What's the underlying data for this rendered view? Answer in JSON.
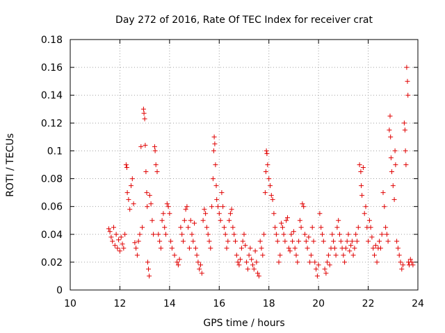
{
  "chart_data": {
    "type": "scatter",
    "title": "Day 272 of 2016, Rate Of TEC Index for receiver crat",
    "xlabel": "GPS time / hours",
    "ylabel": "ROTI / TECUs",
    "xlim": [
      10,
      24
    ],
    "ylim": [
      0,
      0.18
    ],
    "xticks": [
      10,
      12,
      14,
      16,
      18,
      20,
      22,
      24
    ],
    "xtick_labels": [
      "10",
      "12",
      "14",
      "16",
      "18",
      "20",
      "22",
      "24"
    ],
    "yticks": [
      0,
      0.02,
      0.04,
      0.06,
      0.08,
      0.1,
      0.12,
      0.14,
      0.16,
      0.18
    ],
    "ytick_labels": [
      "0",
      "0.02",
      "0.04",
      "0.06",
      "0.08",
      "0.1",
      "0.12",
      "0.14",
      "0.16",
      "0.18"
    ],
    "grid": true,
    "marker": "+",
    "color": "#e00000",
    "series": [
      {
        "name": "ROTI",
        "points": [
          [
            11.55,
            0.044
          ],
          [
            11.6,
            0.042
          ],
          [
            11.65,
            0.038
          ],
          [
            11.7,
            0.035
          ],
          [
            11.75,
            0.045
          ],
          [
            11.8,
            0.032
          ],
          [
            11.85,
            0.04
          ],
          [
            11.9,
            0.03
          ],
          [
            11.95,
            0.036
          ],
          [
            12.0,
            0.028
          ],
          [
            12.05,
            0.038
          ],
          [
            12.1,
            0.033
          ],
          [
            12.15,
            0.03
          ],
          [
            12.2,
            0.04
          ],
          [
            12.25,
            0.09
          ],
          [
            12.28,
            0.088
          ],
          [
            12.3,
            0.07
          ],
          [
            12.35,
            0.065
          ],
          [
            12.4,
            0.058
          ],
          [
            12.45,
            0.075
          ],
          [
            12.5,
            0.08
          ],
          [
            12.55,
            0.062
          ],
          [
            12.6,
            0.034
          ],
          [
            12.65,
            0.03
          ],
          [
            12.7,
            0.025
          ],
          [
            12.75,
            0.035
          ],
          [
            12.8,
            0.04
          ],
          [
            12.85,
            0.103
          ],
          [
            12.9,
            0.045
          ],
          [
            12.95,
            0.13
          ],
          [
            12.97,
            0.127
          ],
          [
            13.0,
            0.123
          ],
          [
            13.02,
            0.104
          ],
          [
            13.05,
            0.085
          ],
          [
            13.08,
            0.07
          ],
          [
            13.1,
            0.06
          ],
          [
            13.12,
            0.02
          ],
          [
            13.15,
            0.015
          ],
          [
            13.18,
            0.01
          ],
          [
            13.2,
            0.068
          ],
          [
            13.25,
            0.062
          ],
          [
            13.3,
            0.05
          ],
          [
            13.35,
            0.04
          ],
          [
            13.4,
            0.103
          ],
          [
            13.42,
            0.1
          ],
          [
            13.45,
            0.09
          ],
          [
            13.5,
            0.085
          ],
          [
            13.55,
            0.04
          ],
          [
            13.6,
            0.035
          ],
          [
            13.65,
            0.03
          ],
          [
            13.7,
            0.05
          ],
          [
            13.75,
            0.055
          ],
          [
            13.8,
            0.045
          ],
          [
            13.85,
            0.04
          ],
          [
            13.9,
            0.062
          ],
          [
            13.95,
            0.06
          ],
          [
            14.0,
            0.055
          ],
          [
            14.05,
            0.035
          ],
          [
            14.1,
            0.03
          ],
          [
            14.2,
            0.025
          ],
          [
            14.3,
            0.02
          ],
          [
            14.35,
            0.018
          ],
          [
            14.4,
            0.022
          ],
          [
            14.45,
            0.045
          ],
          [
            14.5,
            0.04
          ],
          [
            14.55,
            0.035
          ],
          [
            14.6,
            0.05
          ],
          [
            14.65,
            0.058
          ],
          [
            14.7,
            0.06
          ],
          [
            14.75,
            0.045
          ],
          [
            14.8,
            0.03
          ],
          [
            14.85,
            0.05
          ],
          [
            14.9,
            0.04
          ],
          [
            14.95,
            0.035
          ],
          [
            15.0,
            0.048
          ],
          [
            15.05,
            0.03
          ],
          [
            15.1,
            0.025
          ],
          [
            15.15,
            0.02
          ],
          [
            15.2,
            0.015
          ],
          [
            15.25,
            0.018
          ],
          [
            15.3,
            0.012
          ],
          [
            15.35,
            0.05
          ],
          [
            15.4,
            0.058
          ],
          [
            15.45,
            0.055
          ],
          [
            15.5,
            0.045
          ],
          [
            15.55,
            0.04
          ],
          [
            15.6,
            0.035
          ],
          [
            15.65,
            0.03
          ],
          [
            15.7,
            0.06
          ],
          [
            15.75,
            0.08
          ],
          [
            15.78,
            0.1
          ],
          [
            15.8,
            0.11
          ],
          [
            15.82,
            0.105
          ],
          [
            15.85,
            0.09
          ],
          [
            15.88,
            0.075
          ],
          [
            15.9,
            0.065
          ],
          [
            15.95,
            0.06
          ],
          [
            16.0,
            0.055
          ],
          [
            16.05,
            0.05
          ],
          [
            16.1,
            0.07
          ],
          [
            16.15,
            0.06
          ],
          [
            16.2,
            0.045
          ],
          [
            16.25,
            0.04
          ],
          [
            16.3,
            0.03
          ],
          [
            16.35,
            0.035
          ],
          [
            16.4,
            0.05
          ],
          [
            16.45,
            0.055
          ],
          [
            16.5,
            0.058
          ],
          [
            16.55,
            0.045
          ],
          [
            16.6,
            0.04
          ],
          [
            16.65,
            0.035
          ],
          [
            16.7,
            0.025
          ],
          [
            16.75,
            0.02
          ],
          [
            16.8,
            0.018
          ],
          [
            16.85,
            0.022
          ],
          [
            16.9,
            0.03
          ],
          [
            16.95,
            0.035
          ],
          [
            17.0,
            0.04
          ],
          [
            17.05,
            0.032
          ],
          [
            17.1,
            0.02
          ],
          [
            17.15,
            0.015
          ],
          [
            17.2,
            0.025
          ],
          [
            17.25,
            0.03
          ],
          [
            17.3,
            0.022
          ],
          [
            17.35,
            0.018
          ],
          [
            17.4,
            0.015
          ],
          [
            17.45,
            0.028
          ],
          [
            17.5,
            0.02
          ],
          [
            17.55,
            0.012
          ],
          [
            17.6,
            0.01
          ],
          [
            17.65,
            0.035
          ],
          [
            17.7,
            0.03
          ],
          [
            17.75,
            0.025
          ],
          [
            17.8,
            0.04
          ],
          [
            17.85,
            0.07
          ],
          [
            17.88,
            0.085
          ],
          [
            17.9,
            0.1
          ],
          [
            17.92,
            0.098
          ],
          [
            17.95,
            0.09
          ],
          [
            18.0,
            0.08
          ],
          [
            18.05,
            0.075
          ],
          [
            18.1,
            0.068
          ],
          [
            18.15,
            0.065
          ],
          [
            18.2,
            0.055
          ],
          [
            18.25,
            0.045
          ],
          [
            18.3,
            0.04
          ],
          [
            18.35,
            0.035
          ],
          [
            18.4,
            0.02
          ],
          [
            18.45,
            0.025
          ],
          [
            18.5,
            0.048
          ],
          [
            18.55,
            0.045
          ],
          [
            18.6,
            0.04
          ],
          [
            18.65,
            0.035
          ],
          [
            18.7,
            0.05
          ],
          [
            18.75,
            0.052
          ],
          [
            18.8,
            0.03
          ],
          [
            18.85,
            0.028
          ],
          [
            18.9,
            0.04
          ],
          [
            18.95,
            0.035
          ],
          [
            19.0,
            0.042
          ],
          [
            19.05,
            0.03
          ],
          [
            19.1,
            0.025
          ],
          [
            19.15,
            0.02
          ],
          [
            19.2,
            0.035
          ],
          [
            19.25,
            0.05
          ],
          [
            19.3,
            0.045
          ],
          [
            19.35,
            0.062
          ],
          [
            19.4,
            0.06
          ],
          [
            19.45,
            0.04
          ],
          [
            19.5,
            0.035
          ],
          [
            19.55,
            0.03
          ],
          [
            19.6,
            0.038
          ],
          [
            19.65,
            0.02
          ],
          [
            19.7,
            0.025
          ],
          [
            19.75,
            0.045
          ],
          [
            19.8,
            0.035
          ],
          [
            19.85,
            0.02
          ],
          [
            19.9,
            0.015
          ],
          [
            19.95,
            0.01
          ],
          [
            20.0,
            0.018
          ],
          [
            20.05,
            0.055
          ],
          [
            20.1,
            0.045
          ],
          [
            20.15,
            0.04
          ],
          [
            20.2,
            0.035
          ],
          [
            20.25,
            0.015
          ],
          [
            20.3,
            0.012
          ],
          [
            20.35,
            0.02
          ],
          [
            20.4,
            0.025
          ],
          [
            20.45,
            0.018
          ],
          [
            20.5,
            0.03
          ],
          [
            20.55,
            0.04
          ],
          [
            20.6,
            0.035
          ],
          [
            20.65,
            0.03
          ],
          [
            20.7,
            0.025
          ],
          [
            20.75,
            0.045
          ],
          [
            20.8,
            0.05
          ],
          [
            20.85,
            0.04
          ],
          [
            20.9,
            0.035
          ],
          [
            20.95,
            0.03
          ],
          [
            21.0,
            0.025
          ],
          [
            21.05,
            0.02
          ],
          [
            21.1,
            0.03
          ],
          [
            21.15,
            0.035
          ],
          [
            21.2,
            0.04
          ],
          [
            21.25,
            0.028
          ],
          [
            21.3,
            0.032
          ],
          [
            21.35,
            0.035
          ],
          [
            21.4,
            0.025
          ],
          [
            21.45,
            0.03
          ],
          [
            21.5,
            0.04
          ],
          [
            21.55,
            0.035
          ],
          [
            21.6,
            0.045
          ],
          [
            21.65,
            0.09
          ],
          [
            21.7,
            0.085
          ],
          [
            21.72,
            0.075
          ],
          [
            21.75,
            0.068
          ],
          [
            21.8,
            0.088
          ],
          [
            21.85,
            0.055
          ],
          [
            21.9,
            0.06
          ],
          [
            21.95,
            0.045
          ],
          [
            22.0,
            0.035
          ],
          [
            22.05,
            0.05
          ],
          [
            22.1,
            0.045
          ],
          [
            22.15,
            0.038
          ],
          [
            22.2,
            0.03
          ],
          [
            22.25,
            0.025
          ],
          [
            22.3,
            0.032
          ],
          [
            22.35,
            0.02
          ],
          [
            22.4,
            0.03
          ],
          [
            22.45,
            0.035
          ],
          [
            22.5,
            0.03
          ],
          [
            22.55,
            0.04
          ],
          [
            22.6,
            0.07
          ],
          [
            22.65,
            0.06
          ],
          [
            22.7,
            0.045
          ],
          [
            22.75,
            0.04
          ],
          [
            22.8,
            0.035
          ],
          [
            22.85,
            0.115
          ],
          [
            22.88,
            0.125
          ],
          [
            22.9,
            0.11
          ],
          [
            22.92,
            0.095
          ],
          [
            22.95,
            0.085
          ],
          [
            23.0,
            0.075
          ],
          [
            23.05,
            0.065
          ],
          [
            23.08,
            0.1
          ],
          [
            23.1,
            0.09
          ],
          [
            23.15,
            0.035
          ],
          [
            23.2,
            0.03
          ],
          [
            23.25,
            0.025
          ],
          [
            23.3,
            0.02
          ],
          [
            23.35,
            0.015
          ],
          [
            23.4,
            0.018
          ],
          [
            23.45,
            0.12
          ],
          [
            23.48,
            0.115
          ],
          [
            23.5,
            0.1
          ],
          [
            23.52,
            0.09
          ],
          [
            23.55,
            0.16
          ],
          [
            23.58,
            0.15
          ],
          [
            23.6,
            0.14
          ],
          [
            23.62,
            0.02
          ],
          [
            23.65,
            0.018
          ],
          [
            23.7,
            0.022
          ],
          [
            23.75,
            0.02
          ],
          [
            23.8,
            0.018
          ]
        ]
      }
    ]
  }
}
